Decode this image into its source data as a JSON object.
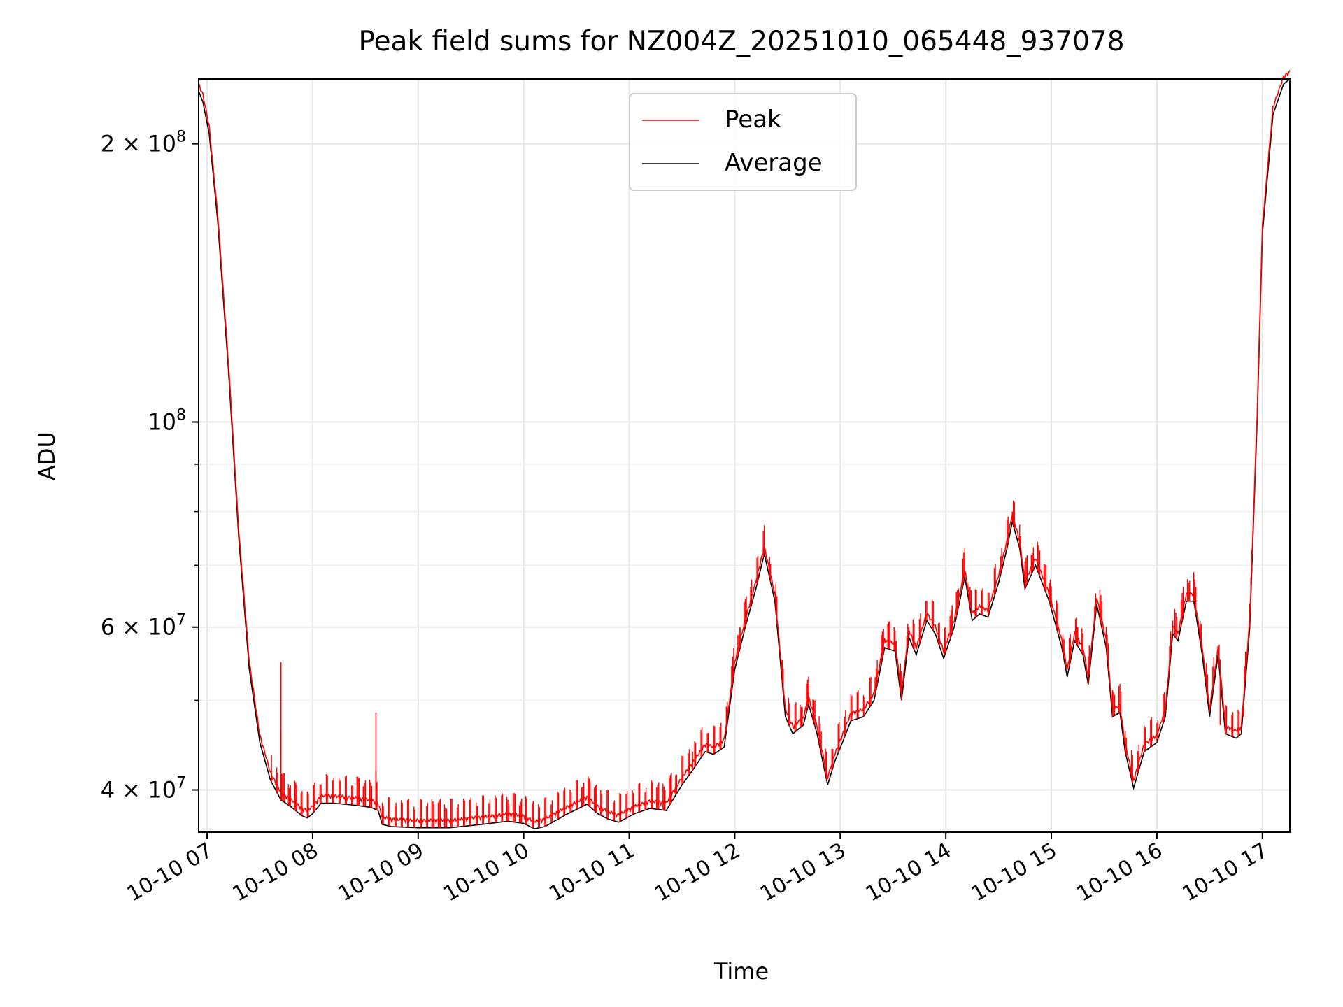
{
  "chart_data": {
    "type": "line",
    "title": "Peak field sums for NZ004Z_20251010_065448_937078",
    "xlabel": "Time",
    "ylabel": "ADU",
    "yscale": "log",
    "xlim": [
      6.92,
      17.26
    ],
    "ylim": [
      36000000,
      235000000
    ],
    "grid": true,
    "legend_position": "upper center",
    "x_ticks": [
      {
        "value": 7,
        "label": "10-10 07"
      },
      {
        "value": 8,
        "label": "10-10 08"
      },
      {
        "value": 9,
        "label": "10-10 09"
      },
      {
        "value": 10,
        "label": "10-10 10"
      },
      {
        "value": 11,
        "label": "10-10 11"
      },
      {
        "value": 12,
        "label": "10-10 12"
      },
      {
        "value": 13,
        "label": "10-10 13"
      },
      {
        "value": 14,
        "label": "10-10 14"
      },
      {
        "value": 15,
        "label": "10-10 15"
      },
      {
        "value": 16,
        "label": "10-10 16"
      },
      {
        "value": 17,
        "label": "10-10 17"
      }
    ],
    "y_ticks": [
      {
        "value": 40000000,
        "base": "4 × 10",
        "exp": "7"
      },
      {
        "value": 60000000,
        "base": "6 × 10",
        "exp": "7"
      },
      {
        "value": 100000000,
        "base": "10",
        "exp": "8"
      },
      {
        "value": 200000000,
        "base": "2 × 10",
        "exp": "8"
      }
    ],
    "y_minor_ticks": [
      50000000,
      70000000,
      80000000,
      90000000
    ],
    "x_unit": "hour of day (2025-10-10)",
    "series": [
      {
        "name": "Average",
        "color": "#000000",
        "points": [
          [
            6.92,
            228000000
          ],
          [
            6.96,
            222000000
          ],
          [
            7.02,
            205000000
          ],
          [
            7.1,
            165000000
          ],
          [
            7.2,
            115000000
          ],
          [
            7.3,
            75000000
          ],
          [
            7.4,
            54000000
          ],
          [
            7.5,
            45000000
          ],
          [
            7.6,
            41000000
          ],
          [
            7.7,
            39000000
          ],
          [
            7.8,
            38300000
          ],
          [
            7.9,
            37500000
          ],
          [
            7.95,
            37300000
          ],
          [
            8.0,
            37700000
          ],
          [
            8.08,
            38700000
          ],
          [
            8.2,
            38700000
          ],
          [
            8.4,
            38500000
          ],
          [
            8.55,
            38300000
          ],
          [
            8.62,
            38000000
          ],
          [
            8.66,
            36700000
          ],
          [
            8.75,
            36500000
          ],
          [
            9.0,
            36400000
          ],
          [
            9.3,
            36400000
          ],
          [
            9.6,
            36700000
          ],
          [
            9.85,
            37000000
          ],
          [
            10.0,
            36800000
          ],
          [
            10.1,
            36300000
          ],
          [
            10.2,
            36500000
          ],
          [
            10.4,
            37600000
          ],
          [
            10.6,
            38600000
          ],
          [
            10.7,
            37700000
          ],
          [
            10.8,
            37200000
          ],
          [
            10.9,
            36900000
          ],
          [
            11.05,
            37700000
          ],
          [
            11.2,
            38200000
          ],
          [
            11.35,
            38000000
          ],
          [
            11.5,
            40500000
          ],
          [
            11.6,
            42000000
          ],
          [
            11.72,
            44000000
          ],
          [
            11.8,
            43700000
          ],
          [
            11.9,
            44500000
          ],
          [
            12.0,
            54000000
          ],
          [
            12.1,
            60000000
          ],
          [
            12.2,
            66000000
          ],
          [
            12.28,
            72000000
          ],
          [
            12.38,
            64000000
          ],
          [
            12.48,
            48000000
          ],
          [
            12.55,
            46000000
          ],
          [
            12.65,
            47000000
          ],
          [
            12.7,
            49500000
          ],
          [
            12.78,
            46000000
          ],
          [
            12.88,
            40500000
          ],
          [
            12.95,
            43000000
          ],
          [
            13.02,
            45000000
          ],
          [
            13.1,
            47500000
          ],
          [
            13.22,
            48000000
          ],
          [
            13.32,
            50000000
          ],
          [
            13.42,
            57000000
          ],
          [
            13.52,
            56500000
          ],
          [
            13.58,
            50000000
          ],
          [
            13.65,
            58500000
          ],
          [
            13.72,
            56000000
          ],
          [
            13.82,
            61000000
          ],
          [
            13.9,
            59000000
          ],
          [
            13.98,
            55500000
          ],
          [
            14.08,
            60000000
          ],
          [
            14.18,
            68000000
          ],
          [
            14.25,
            61000000
          ],
          [
            14.32,
            62000000
          ],
          [
            14.4,
            61500000
          ],
          [
            14.5,
            67000000
          ],
          [
            14.58,
            73000000
          ],
          [
            14.63,
            78000000
          ],
          [
            14.7,
            73000000
          ],
          [
            14.75,
            66000000
          ],
          [
            14.85,
            70000000
          ],
          [
            14.98,
            64000000
          ],
          [
            15.1,
            57000000
          ],
          [
            15.15,
            53000000
          ],
          [
            15.22,
            58000000
          ],
          [
            15.3,
            56000000
          ],
          [
            15.35,
            52000000
          ],
          [
            15.43,
            63500000
          ],
          [
            15.52,
            57000000
          ],
          [
            15.58,
            48000000
          ],
          [
            15.65,
            48500000
          ],
          [
            15.7,
            44000000
          ],
          [
            15.78,
            40200000
          ],
          [
            15.88,
            44000000
          ],
          [
            16.0,
            45000000
          ],
          [
            16.08,
            48000000
          ],
          [
            16.15,
            59000000
          ],
          [
            16.2,
            58000000
          ],
          [
            16.28,
            64000000
          ],
          [
            16.35,
            64000000
          ],
          [
            16.43,
            56000000
          ],
          [
            16.5,
            48000000
          ],
          [
            16.58,
            56000000
          ],
          [
            16.65,
            46000000
          ],
          [
            16.75,
            45500000
          ],
          [
            16.8,
            46000000
          ],
          [
            16.88,
            60000000
          ],
          [
            16.95,
            100000000
          ],
          [
            17.0,
            160000000
          ],
          [
            17.1,
            215000000
          ],
          [
            17.2,
            232000000
          ],
          [
            17.26,
            235000000
          ]
        ]
      },
      {
        "name": "Peak",
        "color": "#ff0000",
        "spikes": [
          [
            7.7,
            55000000
          ],
          [
            8.6,
            48500000
          ],
          [
            11.6,
            44000000
          ],
          [
            12.05,
            60000000
          ],
          [
            12.22,
            69000000
          ],
          [
            12.45,
            55000000
          ],
          [
            12.7,
            51000000
          ],
          [
            13.65,
            60000000
          ],
          [
            13.88,
            64000000
          ],
          [
            14.18,
            69000000
          ],
          [
            14.63,
            80000000
          ],
          [
            14.98,
            67000000
          ],
          [
            15.25,
            60000000
          ],
          [
            15.75,
            42000000
          ],
          [
            16.15,
            61000000
          ],
          [
            16.3,
            65000000
          ],
          [
            16.6,
            47000000
          ],
          [
            16.82,
            48000000
          ]
        ]
      }
    ]
  }
}
